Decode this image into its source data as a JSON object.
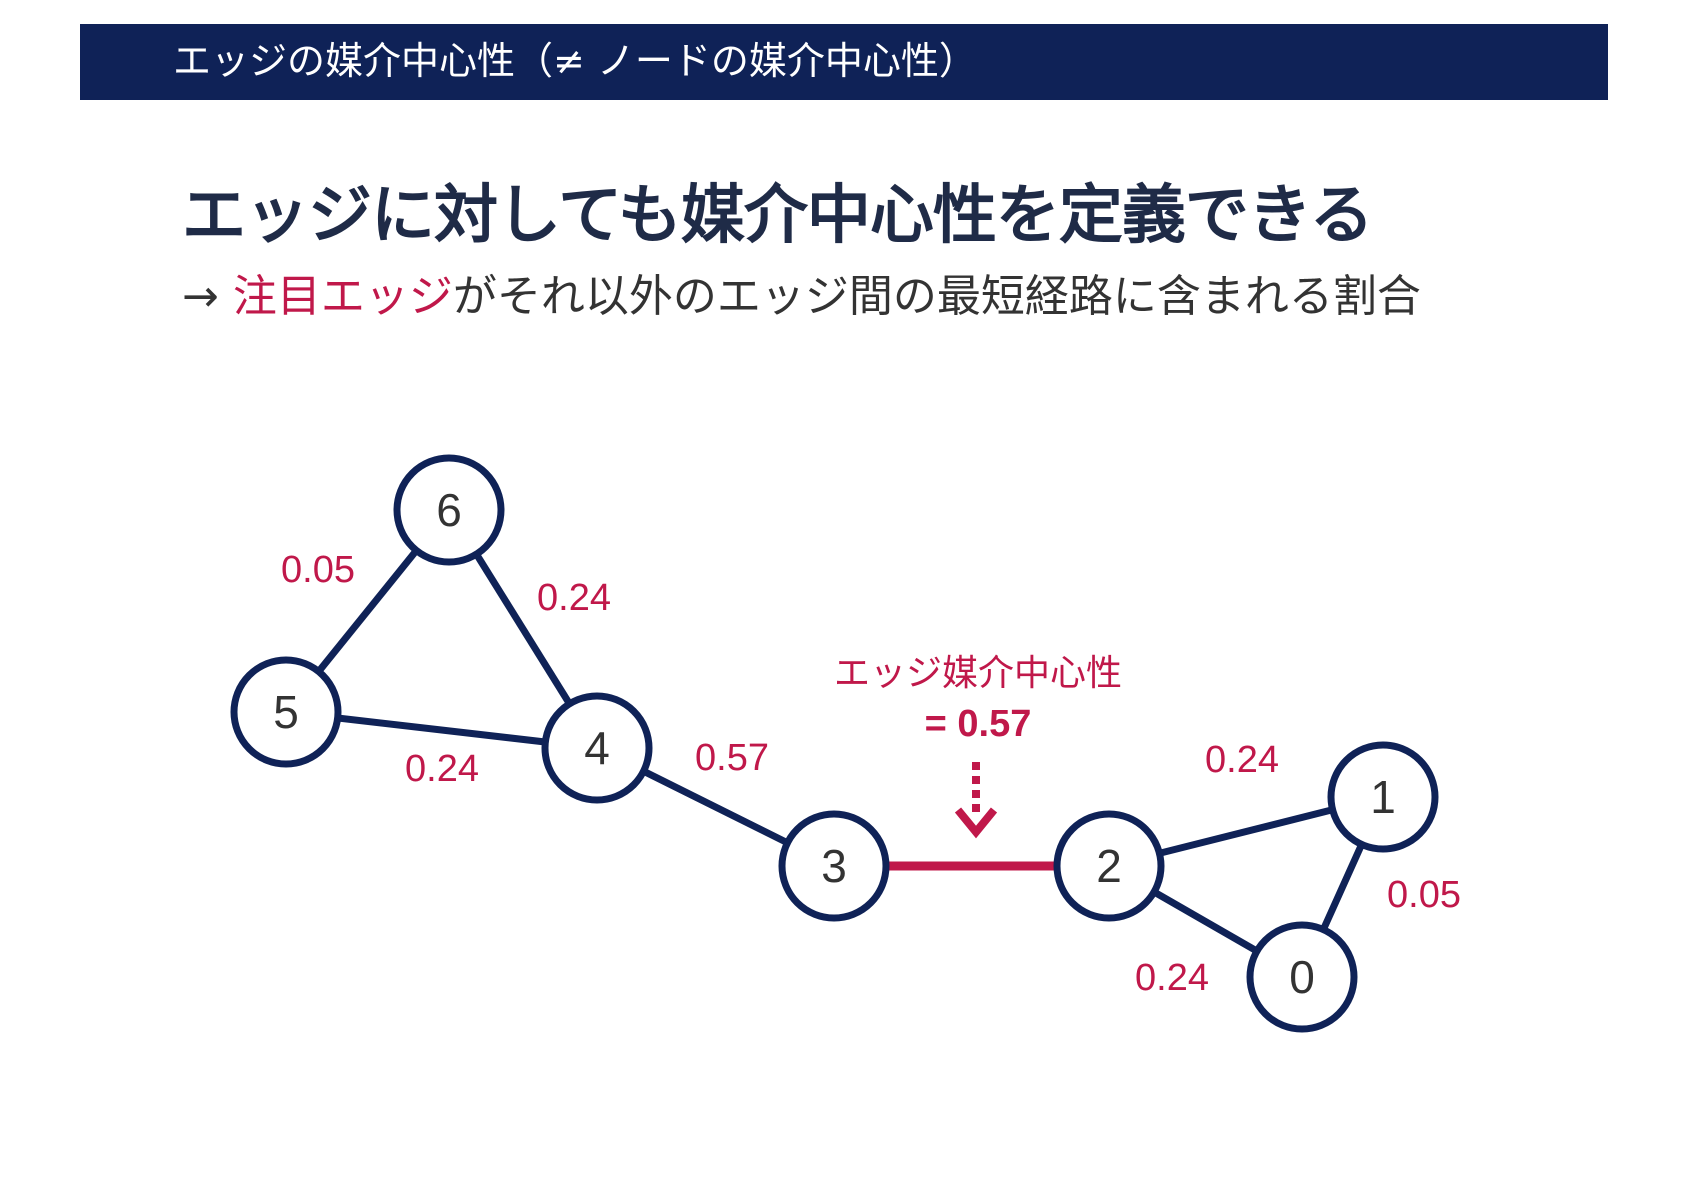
{
  "header": {
    "title": "エッジの媒介中心性（≠ ノードの媒介中心性）"
  },
  "main_title": "エッジに対しても媒介中心性を定義できる",
  "subtitle": {
    "arrow": "→",
    "highlight": "注目エッジ",
    "rest": "がそれ以外のエッジ間の最短経路に含まれる割合"
  },
  "annotation": {
    "label": "エッジ媒介中心性",
    "value": "= 0.57"
  },
  "colors": {
    "navy": "#0f2257",
    "accent": "#c0184a",
    "text": "#333333"
  },
  "graph": {
    "nodes": [
      {
        "id": "0",
        "label": "0"
      },
      {
        "id": "1",
        "label": "1"
      },
      {
        "id": "2",
        "label": "2"
      },
      {
        "id": "3",
        "label": "3"
      },
      {
        "id": "4",
        "label": "4"
      },
      {
        "id": "5",
        "label": "5"
      },
      {
        "id": "6",
        "label": "6"
      }
    ],
    "edges": [
      {
        "source": "6",
        "target": "5",
        "weight": "0.05",
        "highlighted": false
      },
      {
        "source": "6",
        "target": "4",
        "weight": "0.24",
        "highlighted": false
      },
      {
        "source": "5",
        "target": "4",
        "weight": "0.24",
        "highlighted": false
      },
      {
        "source": "4",
        "target": "3",
        "weight": "0.57",
        "highlighted": false
      },
      {
        "source": "3",
        "target": "2",
        "weight": "",
        "highlighted": true
      },
      {
        "source": "2",
        "target": "1",
        "weight": "0.24",
        "highlighted": false
      },
      {
        "source": "2",
        "target": "0",
        "weight": "0.24",
        "highlighted": false
      },
      {
        "source": "1",
        "target": "0",
        "weight": "0.05",
        "highlighted": false
      }
    ]
  }
}
